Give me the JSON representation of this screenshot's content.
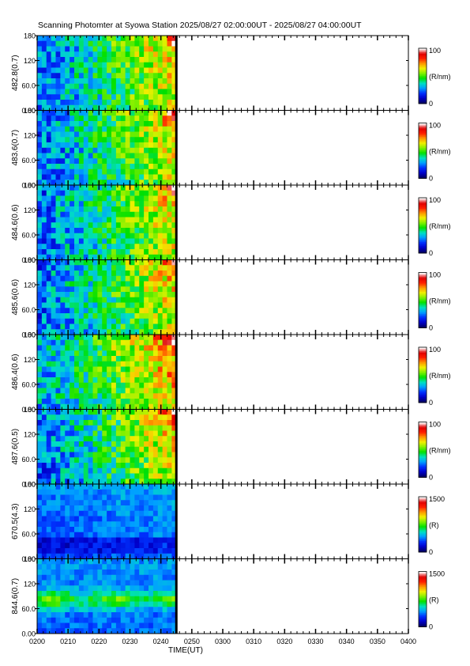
{
  "title": "Scanning Photomter at Syowa Station  2025/08/27 02:00:00UT - 2025/08/27 04:00:00UT",
  "chart_data": {
    "type": "heatmap",
    "xlabel": "TIME(UT)",
    "x_ticks": [
      "0200",
      "0210",
      "0220",
      "0230",
      "0240",
      "0250",
      "0300",
      "0310",
      "0320",
      "0330",
      "0340",
      "0350",
      "0400"
    ],
    "y_ticks": [
      "0.00",
      "60.0",
      "120",
      "180"
    ],
    "ylim": [
      0,
      180
    ],
    "data_end_time": "0245",
    "colormap": [
      "#000066",
      "#0000cc",
      "#0033ff",
      "#00a0ff",
      "#00e0c0",
      "#00e000",
      "#80f000",
      "#f0f000",
      "#ff9900",
      "#ff2000",
      "#e00000",
      "#ffffff"
    ],
    "panels": [
      {
        "ylabel": "482.8(0.7)",
        "cbar_max": "100",
        "cbar_min": "0",
        "cbar_unit": "(R/nm)",
        "style": "hbeta"
      },
      {
        "ylabel": "483.6(0.7)",
        "cbar_max": "100",
        "cbar_min": "0",
        "cbar_unit": "(R/nm)",
        "style": "hbeta"
      },
      {
        "ylabel": "484.6(0.6)",
        "cbar_max": "100",
        "cbar_min": "0",
        "cbar_unit": "(R/nm)",
        "style": "hbeta"
      },
      {
        "ylabel": "485.6(0.6)",
        "cbar_max": "100",
        "cbar_min": "0",
        "cbar_unit": "(R/nm)",
        "style": "hbeta"
      },
      {
        "ylabel": "486.4(0.6)",
        "cbar_max": "100",
        "cbar_min": "0",
        "cbar_unit": "(R/nm)",
        "style": "hbeta_bright"
      },
      {
        "ylabel": "487.6(0.5)",
        "cbar_max": "100",
        "cbar_min": "0",
        "cbar_unit": "(R/nm)",
        "style": "hbeta"
      },
      {
        "ylabel": "670.5(4.3)",
        "cbar_max": "1500",
        "cbar_min": "0",
        "cbar_unit": "(R)",
        "style": "red"
      },
      {
        "ylabel": "844.6(0.7)",
        "cbar_max": "1500",
        "cbar_min": "0",
        "cbar_unit": "(R)",
        "style": "ir"
      }
    ]
  }
}
